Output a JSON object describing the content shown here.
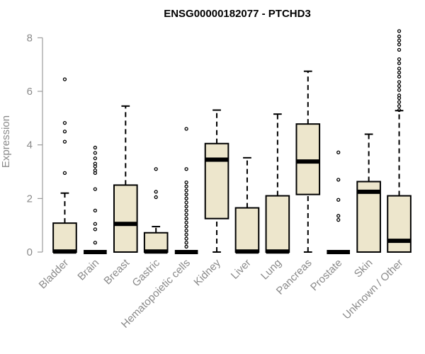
{
  "chart_data": {
    "type": "boxplot",
    "title": "ENSG00000182077 - PTCHD3",
    "xlabel": "",
    "ylabel": "Expression",
    "ylim": [
      0,
      8.3
    ],
    "yticks": [
      0,
      2,
      4,
      6,
      8
    ],
    "grid": false,
    "colors": {
      "box_fill": "#ede6cc",
      "box_stroke": "#000000",
      "axis": "#8a8a8a"
    },
    "categories": [
      "Bladder",
      "Brain",
      "Breast",
      "Gastric",
      "Hematopoietic cells",
      "Kidney",
      "Liver",
      "Lung",
      "Pancreas",
      "Prostate",
      "Skin",
      "Unknown / Other"
    ],
    "boxes": [
      {
        "category": "Bladder",
        "whisker_low": 0,
        "q1": 0,
        "median": 0.02,
        "q3": 1.08,
        "whisker_high": 2.2,
        "outliers": [
          2.95,
          4.12,
          4.5,
          4.82,
          6.45
        ]
      },
      {
        "category": "Brain",
        "whisker_low": 0,
        "q1": 0,
        "median": 0,
        "q3": 0,
        "whisker_high": 0,
        "outliers": [
          0.35,
          0.85,
          1.05,
          1.55,
          2.35,
          2.95,
          3.05,
          3.2,
          3.3,
          3.5,
          3.7,
          3.9
        ]
      },
      {
        "category": "Breast",
        "whisker_low": 0,
        "q1": 0,
        "median": 1.05,
        "q3": 2.5,
        "whisker_high": 5.45,
        "outliers": []
      },
      {
        "category": "Gastric",
        "whisker_low": 0,
        "q1": 0,
        "median": 0.02,
        "q3": 0.72,
        "whisker_high": 0.95,
        "outliers": [
          2.05,
          2.25,
          3.1
        ]
      },
      {
        "category": "Hematopoietic cells",
        "whisker_low": 0,
        "q1": 0,
        "median": 0,
        "q3": 0,
        "whisker_high": 0,
        "outliers": [
          0.2,
          0.35,
          0.5,
          0.65,
          0.8,
          0.95,
          1.1,
          1.25,
          1.4,
          1.55,
          1.7,
          1.85,
          2.0,
          2.15,
          2.3,
          2.45,
          2.6,
          3.1,
          4.6
        ]
      },
      {
        "category": "Kidney",
        "whisker_low": 0,
        "q1": 1.25,
        "median": 3.45,
        "q3": 4.05,
        "whisker_high": 5.3,
        "outliers": []
      },
      {
        "category": "Liver",
        "whisker_low": 0,
        "q1": 0,
        "median": 0.02,
        "q3": 1.65,
        "whisker_high": 3.52,
        "outliers": []
      },
      {
        "category": "Lung",
        "whisker_low": 0,
        "q1": 0,
        "median": 0.02,
        "q3": 2.1,
        "whisker_high": 5.15,
        "outliers": []
      },
      {
        "category": "Pancreas",
        "whisker_low": 0,
        "q1": 2.15,
        "median": 3.38,
        "q3": 4.78,
        "whisker_high": 6.75,
        "outliers": []
      },
      {
        "category": "Prostate",
        "whisker_low": 0,
        "q1": 0,
        "median": 0,
        "q3": 0,
        "whisker_high": 0,
        "outliers": [
          1.2,
          1.35,
          1.95,
          2.7,
          3.72
        ]
      },
      {
        "category": "Skin",
        "whisker_low": 0,
        "q1": 0,
        "median": 2.25,
        "q3": 2.63,
        "whisker_high": 4.4,
        "outliers": []
      },
      {
        "category": "Unknown / Other",
        "whisker_low": 0,
        "q1": 0,
        "median": 0.42,
        "q3": 2.1,
        "whisker_high": 5.28,
        "outliers": [
          5.3,
          5.45,
          5.6,
          5.75,
          5.85,
          6.05,
          6.2,
          6.35,
          6.55,
          6.7,
          6.85,
          7.05,
          7.2,
          7.55,
          7.75,
          7.9,
          8.05,
          8.25
        ]
      }
    ]
  }
}
